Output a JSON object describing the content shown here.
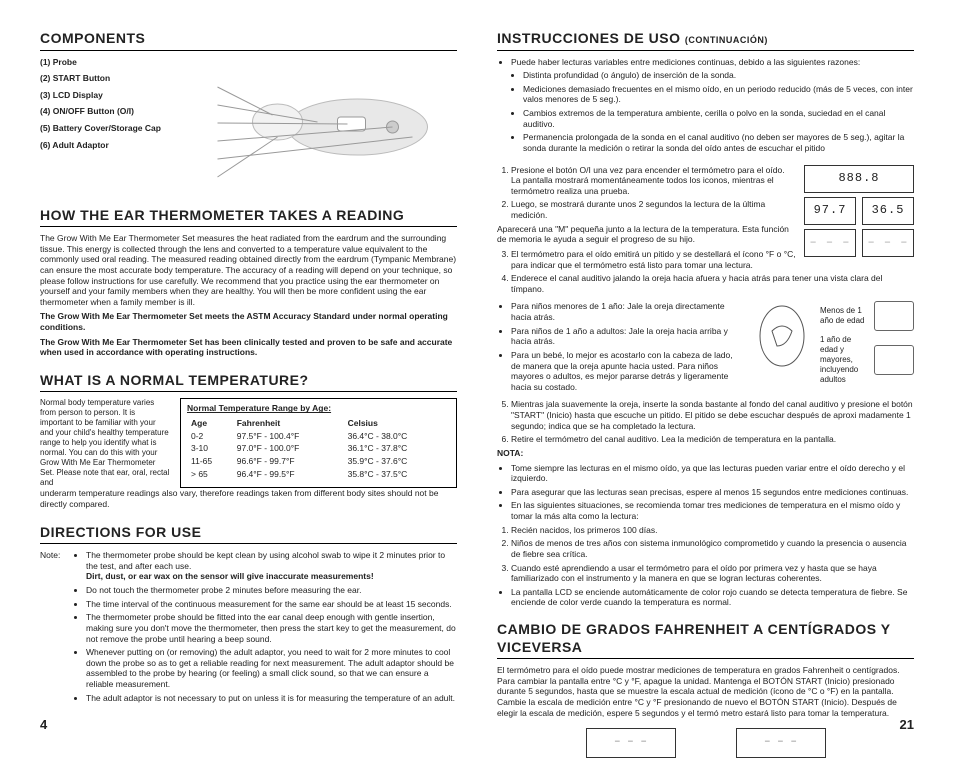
{
  "left": {
    "components_heading": "COMPONENTS",
    "components": [
      "(1)  Probe",
      "(2)  START Button",
      "(3)  LCD Display",
      "(4)  ON/OFF Button (O/I)",
      "(5)  Battery Cover/Storage Cap",
      "(6)  Adult Adaptor"
    ],
    "how_heading": "HOW THE EAR THERMOMETER TAKES A READING",
    "how_p1": "The Grow With Me Ear Thermometer Set measures the heat radiated from the eardrum and the surrounding tissue. This energy is collected through the lens and converted to a temperature value equivalent to the commonly used oral reading. The measured reading obtained directly from the eardrum (Tympanic Membrane) can ensure the most accurate body temperature. The accuracy of a reading will depend on your technique, so please follow instructions for use carefully. We recommend that you practice using the ear thermometer on yourself and your family members when they are healthy. You will then be more confident using the ear thermometer when a family member is ill.",
    "how_p2": "The Grow With Me Ear Thermometer Set meets the ASTM Accuracy Standard under normal operating conditions.",
    "how_p3": "The Grow With Me Ear Thermometer Set has been clinically tested and proven to be safe and accurate when used in accordance with operating instructions.",
    "normal_heading": "WHAT IS A NORMAL TEMPERATURE?",
    "normal_text": "Normal body temperature varies from person to person. It is important to be familiar with your and your child's healthy temperature range to help you identify what is normal. You can do this with your Grow With Me Ear Thermometer Set. Please note that ear, oral, rectal and",
    "normal_foot": "underarm temperature readings also vary, therefore readings taken from different body sites should not be directly compared.",
    "table_title": "Normal Temperature Range by Age:",
    "table_cols": [
      "Age",
      "Fahrenheit",
      "Celsius"
    ],
    "table_rows": [
      [
        "0-2",
        "97.5°F - 100.4°F",
        "36.4°C - 38.0°C"
      ],
      [
        "3-10",
        "97.0°F - 100.0°F",
        "36.1°C - 37.8°C"
      ],
      [
        "11-65",
        "96.6°F - 99.7°F",
        "35.9°C - 37.6°C"
      ],
      [
        "> 65",
        "96.4°F - 99.5°F",
        "35.8°C - 37.5°C"
      ]
    ],
    "directions_heading": "DIRECTIONS FOR USE",
    "note_label": "Note:",
    "directions": [
      "The thermometer probe should be kept clean by using alcohol swab to wipe it 2 minutes prior to the test, and after each use.",
      "Do not touch the thermometer probe 2 minutes before measuring the ear.",
      "The time interval of the continuous measurement for the same ear should be at least 15 seconds.",
      "The thermometer probe should be fitted into the ear canal deep enough with gentle insertion, making sure you don't move the thermometer, then press the start key to get the measurement, do not remove the probe until hearing a beep sound.",
      "Whenever putting on (or removing) the adult adaptor, you need to wait for 2 more minutes to cool down the probe so as to get a reliable reading for next measurement. The adult adaptor should be assembled to the probe by hearing (or feeling) a small click sound, so that we can ensure a reliable measurement.",
      "The adult adaptor is not necessary to put on unless it is for measuring the temperature of an adult."
    ],
    "directions_warn": "Dirt, dust, or ear wax on the sensor will give inaccurate measurements!",
    "page": "4"
  },
  "right": {
    "instr_heading": "INSTRUCCIONES DE USO",
    "instr_sub": "(CONTINUACIÓN)",
    "intro": "Puede haber lecturas variables entre mediciones continuas, debido a las siguientes razones:",
    "intro_list": [
      "Distinta profundidad (o ángulo) de inserción de la sonda.",
      "Mediciones demasiado frecuentes en el mismo oído, en un periodo reducido (más de 5 veces, con inter valos menores de 5 seg.).",
      "Cambios extremos de la temperatura ambiente, cerilla o polvo en la sonda, suciedad en el canal auditivo.",
      "Permanencia prolongada de la sonda en el canal auditivo (no deben ser mayores de 5 seg.), agitar la sonda durante la medición o retirar la sonda del oído antes de escuchar el pitido"
    ],
    "lcd_top": "888.8",
    "lcd_l": "97.7",
    "lcd_r": "36.5",
    "lcd_dash": "– – –",
    "steps_pre": [
      "Presione el botón O/I una vez para encender el termómetro para el oído. La pantalla mostrará momentáneamente todos los iconos, mientras el termómetro realiza una prueba.",
      "Luego, se mostrará durante unos 2 segundos la lectura de la última medición."
    ],
    "steps_pre_after": "Aparecerá una \"M\" pequeña junto a la lectura de la temperatura. Esta función de memoria le ayuda a seguir el progreso de su hijo.",
    "step3": "El termómetro para el oído emitirá un pitido y se destellará el ícono °F o °C, para indicar que el termómetro está listo para tomar una lectura.",
    "step4": "Enderece el canal auditivo jalando la oreja hacia afuera y hacia atrás para tener una vista clara del tímpano.",
    "ear_list": [
      "Para niños menores de 1 año: Jale la oreja directamente hacia atrás.",
      "Para niños de 1 año a adultos: Jale la oreja hacia arriba y hacia atrás.",
      "Para un bebé, lo mejor es acostarlo con la cabeza de lado, de manera que la oreja apunte hacia usted. Para niños mayores o adultos, es mejor pararse detrás y ligeramente hacia su costado."
    ],
    "ear_cap1": "Menos de 1 año de edad",
    "ear_cap2": "1 año de edad y mayores, incluyendo adultos",
    "step5": "Mientras jala suavemente la oreja, inserte la sonda bastante al fondo del canal auditivo y presione el botón \"START\" (Inicio) hasta que escuche un pitido. El pitido se debe escuchar después de aproxi madamente 1 segundo; indica que se ha completado la lectura.",
    "step6": "Retire el termómetro del canal auditivo. Lea la medición de temperatura en la pantalla.",
    "nota_label": "NOTA:",
    "nota_list": [
      "Tome siempre las lecturas en el mismo oído, ya que las lecturas pueden variar entre el oído derecho y el izquierdo.",
      "Para asegurar que las lecturas sean precisas, espere al menos 15 segundos entre mediciones continuas.",
      "En las siguientes situaciones, se recomienda tomar tres mediciones de temperatura en el mismo oído y tomar la más alta como la lectura:"
    ],
    "nota_ol": [
      "Recién nacidos, los primeros 100 días.",
      "Niños de menos de tres años con sistema inmunológico comprometido y cuando la presencia o ausencia de fiebre sea crítica.",
      "Cuando esté aprendiendo a usar el termómetro para el oído por primera vez y hasta que se haya familiarizado con el instrumento y la manera en que se logran lecturas coherentes."
    ],
    "nota_last": "La pantalla LCD se enciende automáticamente de color rojo cuando se detecta temperatura de fiebre. Se enciende de color verde cuando la temperatura es normal.",
    "cambio_heading": "CAMBIO DE GRADOS FAHRENHEIT A CENTÍGRADOS Y VICEVERSA",
    "cambio_text": "El termómetro para el oído puede mostrar mediciones de temperatura en grados Fahrenheit o centígrados. Para cambiar la pantalla entre °C y °F, apague la unidad. Mantenga el BOTÓN START (Inicio) presionado durante 5 segundos, hasta que se muestre la escala actual de medición (ícono de °C o °F) en la pantalla. Cambie la escala de medición entre °C y °F presionando de nuevo el BOTÓN START (Inicio). Después de elegir la escala de medición, espere 5 segundos y el termó metro estará listo para tomar la temperatura.",
    "page": "21"
  }
}
